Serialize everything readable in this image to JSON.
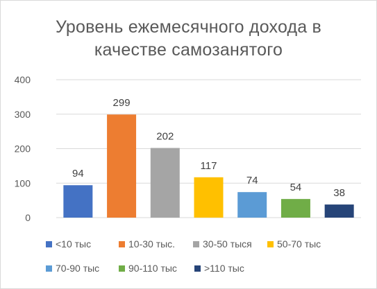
{
  "chart_data": {
    "type": "bar",
    "title_lines": [
      "Уровень ежемесячного дохода в",
      "качестве самозанятого"
    ],
    "categories": [
      "<10 тыс",
      "10-30 тыс.",
      "30-50 тыся",
      "50-70 тыс",
      "70-90 тыс",
      "90-110 тыс",
      ">110 тыс"
    ],
    "values": [
      94,
      299,
      202,
      117,
      74,
      54,
      38
    ],
    "colors": [
      "#4472C4",
      "#ED7D31",
      "#A5A5A5",
      "#FFC000",
      "#5B9BD5",
      "#70AD47",
      "#264478"
    ],
    "yticks": [
      "0",
      "100",
      "200",
      "300",
      "400"
    ],
    "ylim": [
      0,
      400
    ],
    "grid": true,
    "legend_position": "bottom",
    "xlabel": "",
    "ylabel": ""
  }
}
